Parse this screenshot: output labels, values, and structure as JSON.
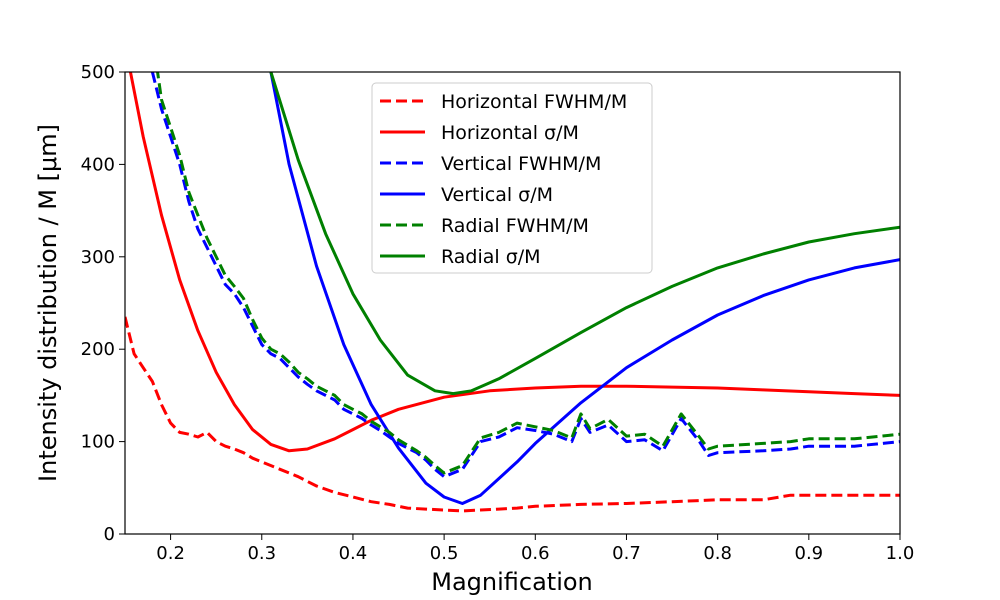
{
  "chart_data": {
    "type": "line",
    "title": "",
    "xlabel": "Magnification",
    "ylabel": "Intensity distribution / M [μm]",
    "xlim": [
      0.15,
      1.0
    ],
    "ylim": [
      0,
      500
    ],
    "x_ticks": [
      "0.2",
      "0.3",
      "0.4",
      "0.5",
      "0.6",
      "0.7",
      "0.8",
      "0.9",
      "1.0"
    ],
    "y_ticks": [
      "0",
      "100",
      "200",
      "300",
      "400",
      "500"
    ],
    "grid": false,
    "legend_placement": "top-center",
    "series": [
      {
        "name": "Horizontal FWHM/M",
        "color": "#ff0000",
        "dash": "dashed",
        "x": [
          0.15,
          0.16,
          0.17,
          0.18,
          0.19,
          0.2,
          0.21,
          0.22,
          0.23,
          0.24,
          0.25,
          0.26,
          0.27,
          0.28,
          0.29,
          0.3,
          0.32,
          0.34,
          0.36,
          0.38,
          0.4,
          0.42,
          0.44,
          0.46,
          0.48,
          0.5,
          0.52,
          0.54,
          0.56,
          0.58,
          0.6,
          0.65,
          0.7,
          0.75,
          0.8,
          0.85,
          0.88,
          0.9,
          0.95,
          1.0
        ],
        "y": [
          235,
          195,
          180,
          165,
          140,
          120,
          110,
          108,
          105,
          110,
          100,
          95,
          92,
          88,
          82,
          78,
          70,
          62,
          52,
          45,
          40,
          35,
          32,
          28,
          27,
          26,
          25,
          26,
          27,
          28,
          30,
          32,
          33,
          35,
          37,
          37,
          42,
          42,
          42,
          42
        ]
      },
      {
        "name": "Horizontal σ/M",
        "color": "#ff0000",
        "dash": "solid",
        "x": [
          0.15,
          0.17,
          0.19,
          0.21,
          0.23,
          0.25,
          0.27,
          0.29,
          0.31,
          0.33,
          0.35,
          0.38,
          0.4,
          0.42,
          0.45,
          0.5,
          0.55,
          0.6,
          0.65,
          0.7,
          0.75,
          0.8,
          0.85,
          0.9,
          0.95,
          1.0
        ],
        "y": [
          530,
          430,
          345,
          275,
          220,
          175,
          140,
          113,
          97,
          90,
          92,
          103,
          113,
          123,
          135,
          148,
          155,
          158,
          160,
          160,
          159,
          158,
          156,
          154,
          152,
          150
        ]
      },
      {
        "name": "Vertical FWHM/M",
        "color": "#0000ff",
        "dash": "dashed",
        "x": [
          0.18,
          0.19,
          0.2,
          0.21,
          0.22,
          0.23,
          0.24,
          0.25,
          0.26,
          0.27,
          0.28,
          0.29,
          0.3,
          0.31,
          0.32,
          0.33,
          0.34,
          0.35,
          0.36,
          0.37,
          0.38,
          0.39,
          0.4,
          0.41,
          0.42,
          0.43,
          0.44,
          0.45,
          0.46,
          0.47,
          0.48,
          0.49,
          0.5,
          0.52,
          0.54,
          0.56,
          0.58,
          0.6,
          0.62,
          0.64,
          0.65,
          0.66,
          0.68,
          0.7,
          0.72,
          0.74,
          0.76,
          0.78,
          0.79,
          0.8,
          0.85,
          0.88,
          0.9,
          0.95,
          1.0
        ],
        "y": [
          500,
          460,
          430,
          400,
          360,
          330,
          310,
          290,
          270,
          260,
          245,
          225,
          205,
          195,
          190,
          180,
          170,
          162,
          155,
          150,
          145,
          135,
          130,
          125,
          118,
          112,
          105,
          98,
          93,
          88,
          80,
          70,
          62,
          70,
          100,
          105,
          115,
          112,
          108,
          100,
          125,
          110,
          118,
          100,
          102,
          90,
          125,
          100,
          85,
          88,
          90,
          92,
          95,
          95,
          100
        ]
      },
      {
        "name": "Vertical σ/M",
        "color": "#0000ff",
        "dash": "solid",
        "x": [
          0.3,
          0.33,
          0.36,
          0.39,
          0.42,
          0.45,
          0.48,
          0.5,
          0.52,
          0.54,
          0.56,
          0.58,
          0.6,
          0.65,
          0.7,
          0.75,
          0.8,
          0.85,
          0.9,
          0.95,
          1.0
        ],
        "y": [
          550,
          400,
          290,
          205,
          140,
          93,
          55,
          40,
          33,
          42,
          60,
          78,
          98,
          142,
          180,
          210,
          237,
          258,
          275,
          288,
          297
        ]
      },
      {
        "name": "Radial FWHM/M",
        "color": "#008000",
        "dash": "dashed",
        "x": [
          0.185,
          0.19,
          0.2,
          0.21,
          0.22,
          0.23,
          0.24,
          0.25,
          0.26,
          0.27,
          0.28,
          0.29,
          0.3,
          0.31,
          0.32,
          0.33,
          0.34,
          0.35,
          0.36,
          0.37,
          0.38,
          0.39,
          0.4,
          0.41,
          0.42,
          0.43,
          0.44,
          0.45,
          0.46,
          0.47,
          0.48,
          0.49,
          0.5,
          0.52,
          0.54,
          0.56,
          0.58,
          0.6,
          0.62,
          0.64,
          0.65,
          0.66,
          0.68,
          0.7,
          0.72,
          0.74,
          0.76,
          0.78,
          0.79,
          0.8,
          0.85,
          0.88,
          0.9,
          0.95,
          1.0
        ],
        "y": [
          505,
          470,
          440,
          410,
          370,
          345,
          320,
          300,
          280,
          268,
          255,
          232,
          212,
          200,
          195,
          186,
          175,
          168,
          160,
          155,
          150,
          140,
          135,
          130,
          122,
          116,
          110,
          102,
          96,
          90,
          83,
          74,
          66,
          74,
          104,
          110,
          120,
          116,
          112,
          104,
          130,
          114,
          124,
          106,
          108,
          95,
          130,
          105,
          92,
          95,
          98,
          100,
          103,
          103,
          108
        ]
      },
      {
        "name": "Radial σ/M",
        "color": "#008000",
        "dash": "solid",
        "x": [
          0.31,
          0.34,
          0.37,
          0.4,
          0.43,
          0.46,
          0.49,
          0.51,
          0.53,
          0.56,
          0.6,
          0.65,
          0.7,
          0.75,
          0.8,
          0.85,
          0.9,
          0.95,
          1.0
        ],
        "y": [
          500,
          405,
          325,
          260,
          210,
          172,
          155,
          152,
          155,
          168,
          190,
          218,
          245,
          268,
          288,
          303,
          316,
          325,
          332
        ]
      }
    ]
  }
}
